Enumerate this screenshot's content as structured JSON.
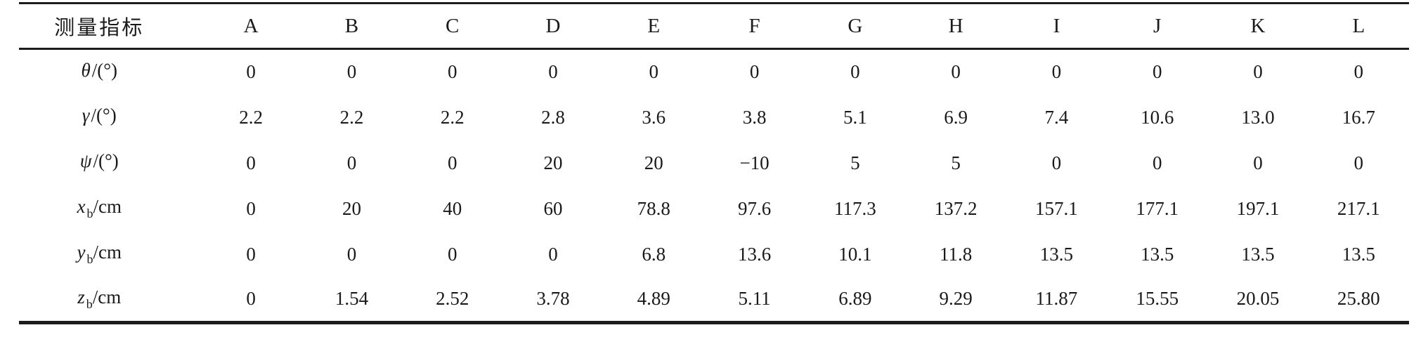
{
  "table": {
    "header": {
      "label": "测量指标",
      "columns": [
        "A",
        "B",
        "C",
        "D",
        "E",
        "F",
        "G",
        "H",
        "I",
        "J",
        "K",
        "L"
      ]
    },
    "rows": [
      {
        "label": {
          "symbol": "θ",
          "sub": "",
          "unit": "/(°)"
        },
        "values": [
          "0",
          "0",
          "0",
          "0",
          "0",
          "0",
          "0",
          "0",
          "0",
          "0",
          "0",
          "0"
        ]
      },
      {
        "label": {
          "symbol": "γ",
          "sub": "",
          "unit": "/(°)"
        },
        "values": [
          "2.2",
          "2.2",
          "2.2",
          "2.8",
          "3.6",
          "3.8",
          "5.1",
          "6.9",
          "7.4",
          "10.6",
          "13.0",
          "16.7"
        ]
      },
      {
        "label": {
          "symbol": "ψ",
          "sub": "",
          "unit": "/(°)"
        },
        "values": [
          "0",
          "0",
          "0",
          "20",
          "20",
          "−10",
          "5",
          "5",
          "0",
          "0",
          "0",
          "0"
        ]
      },
      {
        "label": {
          "symbol": "x",
          "sub": "b",
          "unit": "/cm"
        },
        "values": [
          "0",
          "20",
          "40",
          "60",
          "78.8",
          "97.6",
          "117.3",
          "137.2",
          "157.1",
          "177.1",
          "197.1",
          "217.1"
        ]
      },
      {
        "label": {
          "symbol": "y",
          "sub": "b",
          "unit": "/cm"
        },
        "values": [
          "0",
          "0",
          "0",
          "0",
          "6.8",
          "13.6",
          "10.1",
          "11.8",
          "13.5",
          "13.5",
          "13.5",
          "13.5"
        ]
      },
      {
        "label": {
          "symbol": "z",
          "sub": "b",
          "unit": "/cm"
        },
        "values": [
          "0",
          "1.54",
          "2.52",
          "3.78",
          "4.89",
          "5.11",
          "6.89",
          "9.29",
          "11.87",
          "15.55",
          "20.05",
          "25.80"
        ]
      }
    ]
  }
}
